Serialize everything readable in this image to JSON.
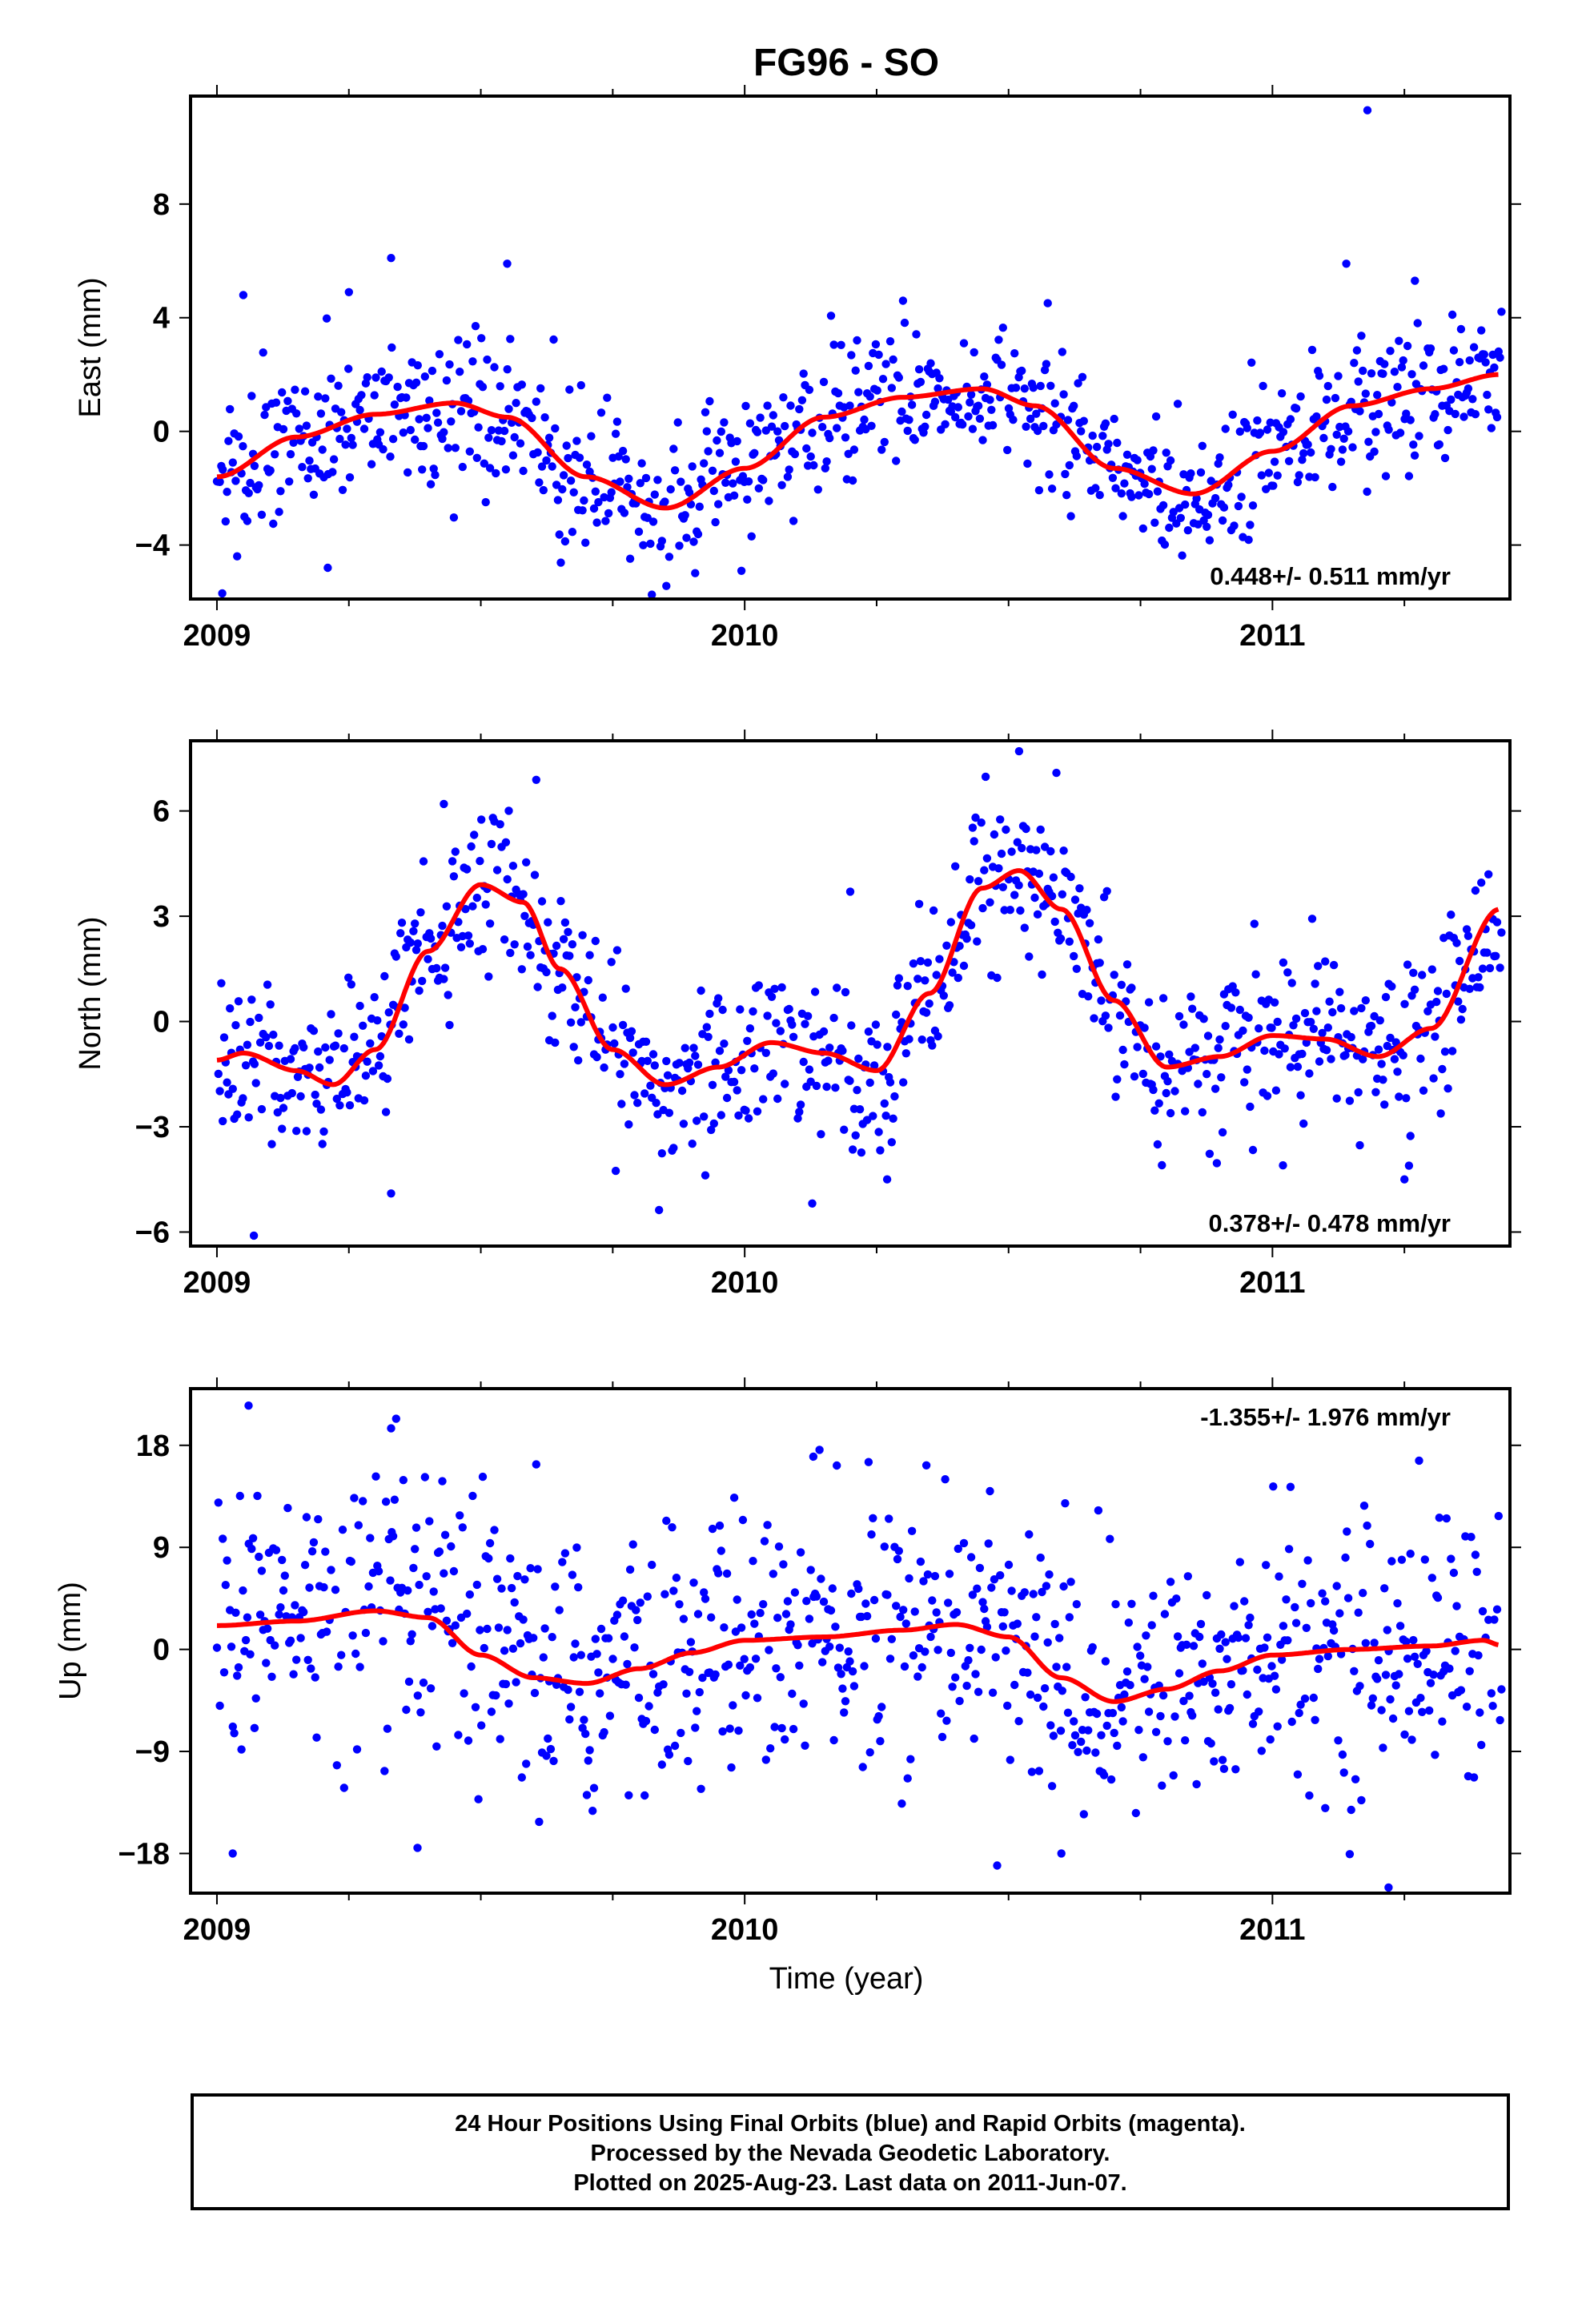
{
  "title": "FG96 - SO",
  "colors": {
    "final_orbits": "#0000ff",
    "rapid_orbits": "#ff00ff",
    "trend": "#ff0000",
    "frame": "#000000"
  },
  "x_axis": {
    "label": "Time (year)",
    "range": [
      2008.95,
      2011.45
    ],
    "tick_labels": [
      "2009",
      "2010",
      "2011"
    ]
  },
  "caption": [
    "24 Hour Positions Using Final Orbits (blue) and Rapid Orbits (magenta).",
    "Processed by the Nevada Geodetic Laboratory.",
    "Plotted on 2025-Aug-23. Last data on 2011-Jun-07."
  ],
  "chart_data": [
    {
      "type": "scatter",
      "ylabel": "East (mm)",
      "ylim": [
        -5.9,
        11.8
      ],
      "yticks": [
        -4,
        0,
        4,
        8
      ],
      "rate_label": "0.448+/- 0.511 mm/yr",
      "rate_label_position": "bottom-right",
      "scatter_sd": 1.3,
      "trend": {
        "name": "",
        "x": [
          2009.0,
          2009.15,
          2009.3,
          2009.45,
          2009.55,
          2009.7,
          2009.85,
          2010.0,
          2010.15,
          2010.3,
          2010.45,
          2010.55,
          2010.7,
          2010.85,
          2011.0,
          2011.15,
          2011.3,
          2011.43
        ],
        "y": [
          -1.6,
          -0.2,
          0.6,
          1.0,
          0.5,
          -1.6,
          -2.7,
          -1.3,
          0.5,
          1.2,
          1.5,
          0.9,
          -1.3,
          -2.2,
          -0.7,
          0.9,
          1.5,
          2.0
        ]
      },
      "outliers": {
        "x": [
          2011.18,
          2009.33,
          2009.55,
          2009.25,
          2009.05,
          2009.01,
          2009.21,
          2010.3,
          2011.14,
          2011.27
        ],
        "y": [
          11.3,
          6.1,
          5.9,
          4.9,
          4.8,
          -5.7,
          -4.8,
          4.6,
          5.9,
          5.3
        ]
      }
    },
    {
      "type": "scatter",
      "ylabel": "North (mm)",
      "ylim": [
        -6.4,
        8.0
      ],
      "yticks": [
        -6,
        -3,
        0,
        3,
        6
      ],
      "rate_label": "0.378+/- 0.478 mm/yr",
      "rate_label_position": "bottom-right",
      "scatter_sd": 1.15,
      "trend": {
        "name": "",
        "x": [
          2009.0,
          2009.05,
          2009.15,
          2009.22,
          2009.3,
          2009.4,
          2009.5,
          2009.58,
          2009.65,
          2009.75,
          2009.85,
          2009.95,
          2010.05,
          2010.15,
          2010.25,
          2010.35,
          2010.45,
          2010.52,
          2010.6,
          2010.7,
          2010.8,
          2010.9,
          2011.0,
          2011.1,
          2011.2,
          2011.3,
          2011.43
        ],
        "y": [
          -1.1,
          -0.9,
          -1.4,
          -1.8,
          -0.8,
          2.0,
          3.9,
          3.4,
          1.5,
          -0.8,
          -1.8,
          -1.3,
          -0.6,
          -0.9,
          -1.4,
          0.8,
          3.8,
          4.3,
          3.2,
          0.6,
          -1.3,
          -1.0,
          -0.4,
          -0.5,
          -1.0,
          -0.2,
          3.2
        ]
      },
      "outliers": {
        "x": [
          2010.52,
          2009.43,
          2011.25,
          2009.07,
          2009.33,
          2010.2,
          2010.27,
          2011.02
        ],
        "y": [
          7.7,
          6.2,
          -4.5,
          -6.1,
          -4.9,
          3.7,
          -4.5,
          -4.1
        ]
      }
    },
    {
      "type": "scatter",
      "ylabel": "Up (mm)",
      "ylim": [
        -21.5,
        23.0
      ],
      "yticks": [
        -18,
        -9,
        0,
        9,
        18
      ],
      "rate_label": "-1.355+/- 1.976 mm/yr",
      "rate_label_position": "top-right",
      "scatter_sd": 6.0,
      "trend": {
        "name": "",
        "x": [
          2009.0,
          2009.15,
          2009.3,
          2009.4,
          2009.5,
          2009.6,
          2009.7,
          2009.8,
          2009.9,
          2010.0,
          2010.15,
          2010.3,
          2010.4,
          2010.5,
          2010.6,
          2010.7,
          2010.8,
          2010.9,
          2011.0,
          2011.15,
          2011.3,
          2011.4,
          2011.43
        ],
        "y": [
          2.1,
          2.5,
          3.4,
          2.8,
          -0.5,
          -2.5,
          -3.0,
          -1.7,
          -0.3,
          0.8,
          1.1,
          1.7,
          2.2,
          1.1,
          -2.5,
          -4.6,
          -3.5,
          -1.9,
          -0.5,
          0.0,
          0.3,
          0.8,
          0.4
        ]
      },
      "outliers": {
        "x": [
          2009.06,
          2009.33,
          2011.22,
          2009.03,
          2009.38,
          2010.6,
          2011.1,
          2010.13
        ],
        "y": [
          21.5,
          19.5,
          -21.0,
          -18.0,
          -17.5,
          -18.0,
          -14.0,
          17.0
        ]
      }
    }
  ]
}
